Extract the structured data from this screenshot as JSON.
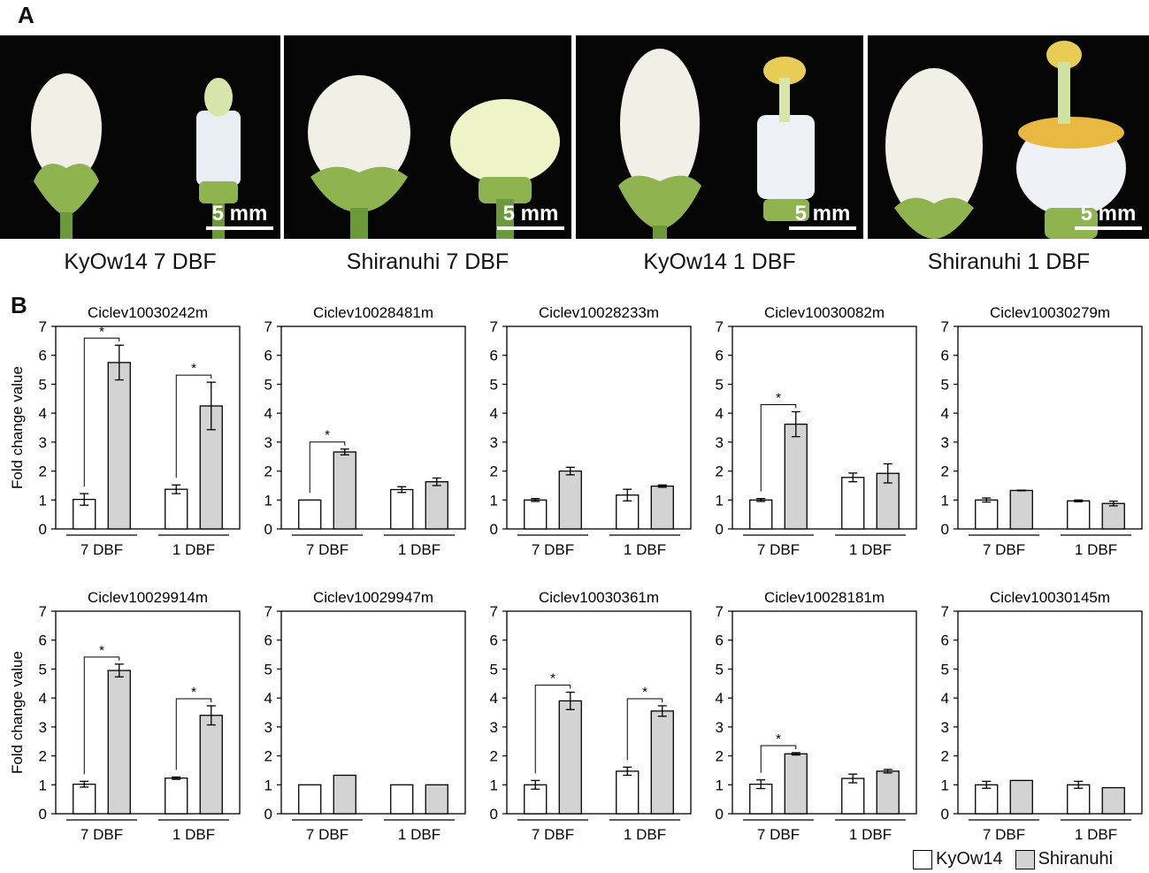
{
  "panels": {
    "a": "A",
    "b": "B"
  },
  "photos": [
    {
      "caption": "KyOw14 7 DBF",
      "scale": "5 mm"
    },
    {
      "caption": "Shiranuhi 7 DBF",
      "scale": "5 mm"
    },
    {
      "caption": "KyOw14 1 DBF",
      "scale": "5 mm"
    },
    {
      "caption": "Shiranuhi 1 DBF",
      "scale": "5 mm"
    }
  ],
  "legend": [
    {
      "label": "KyOw14",
      "color": "#ffffff"
    },
    {
      "label": "Shiranuhi",
      "color": "#d3d3d3"
    }
  ],
  "chart_data": [
    {
      "type": "bar",
      "title": "Ciclev10030242m",
      "ylabel": "Fold change value",
      "ylim": [
        0,
        7
      ],
      "categories": [
        "7 DBF",
        "1 DBF"
      ],
      "series": [
        {
          "name": "KyOw14",
          "values": [
            1.02,
            1.37
          ],
          "errors": [
            0.2,
            0.15
          ]
        },
        {
          "name": "Shiranuhi",
          "values": [
            5.75,
            4.25
          ],
          "errors": [
            0.6,
            0.82
          ]
        }
      ],
      "significant": [
        true,
        true
      ]
    },
    {
      "type": "bar",
      "title": "Ciclev10028481m",
      "ylabel": "",
      "ylim": [
        0,
        7
      ],
      "categories": [
        "7 DBF",
        "1 DBF"
      ],
      "series": [
        {
          "name": "KyOw14",
          "values": [
            1.0,
            1.36
          ],
          "errors": [
            0,
            0.1
          ]
        },
        {
          "name": "Shiranuhi",
          "values": [
            2.66,
            1.63
          ],
          "errors": [
            0.1,
            0.13
          ]
        }
      ],
      "significant": [
        true,
        false
      ]
    },
    {
      "type": "bar",
      "title": "Ciclev10028233m",
      "ylabel": "",
      "ylim": [
        0,
        7
      ],
      "categories": [
        "7 DBF",
        "1 DBF"
      ],
      "series": [
        {
          "name": "KyOw14",
          "values": [
            1.0,
            1.17
          ],
          "errors": [
            0.05,
            0.2
          ]
        },
        {
          "name": "Shiranuhi",
          "values": [
            2.0,
            1.48
          ],
          "errors": [
            0.13,
            0.04
          ]
        }
      ],
      "significant": [
        false,
        false
      ]
    },
    {
      "type": "bar",
      "title": "Ciclev10030082m",
      "ylabel": "",
      "ylim": [
        0,
        7
      ],
      "categories": [
        "7 DBF",
        "1 DBF"
      ],
      "series": [
        {
          "name": "KyOw14",
          "values": [
            1.0,
            1.78
          ],
          "errors": [
            0.05,
            0.15
          ]
        },
        {
          "name": "Shiranuhi",
          "values": [
            3.62,
            1.92
          ],
          "errors": [
            0.43,
            0.33
          ]
        }
      ],
      "significant": [
        true,
        false
      ]
    },
    {
      "type": "bar",
      "title": "Ciclev10030279m",
      "ylabel": "",
      "ylim": [
        0,
        7
      ],
      "categories": [
        "7 DBF",
        "1 DBF"
      ],
      "series": [
        {
          "name": "KyOw14",
          "values": [
            1.0,
            0.97
          ],
          "errors": [
            0.07,
            0.03
          ]
        },
        {
          "name": "Shiranuhi",
          "values": [
            1.33,
            0.88
          ],
          "errors": [
            0.01,
            0.08
          ]
        }
      ],
      "significant": [
        false,
        false
      ]
    },
    {
      "type": "bar",
      "title": "Ciclev10029914m",
      "ylabel": "Fold change value",
      "ylim": [
        0,
        7
      ],
      "categories": [
        "7 DBF",
        "1 DBF"
      ],
      "series": [
        {
          "name": "KyOw14",
          "values": [
            1.02,
            1.23
          ],
          "errors": [
            0.1,
            0.04
          ]
        },
        {
          "name": "Shiranuhi",
          "values": [
            4.95,
            3.4
          ],
          "errors": [
            0.22,
            0.33
          ]
        }
      ],
      "significant": [
        true,
        true
      ]
    },
    {
      "type": "bar",
      "title": "Ciclev10029947m",
      "ylabel": "",
      "ylim": [
        0,
        7
      ],
      "categories": [
        "7 DBF",
        "1 DBF"
      ],
      "series": [
        {
          "name": "KyOw14",
          "values": [
            1.0,
            1.0
          ],
          "errors": [
            0,
            0
          ]
        },
        {
          "name": "Shiranuhi",
          "values": [
            1.33,
            1.0
          ],
          "errors": [
            0,
            0
          ]
        }
      ],
      "significant": [
        false,
        false
      ]
    },
    {
      "type": "bar",
      "title": "Ciclev10030361m",
      "ylabel": "",
      "ylim": [
        0,
        7
      ],
      "categories": [
        "7 DBF",
        "1 DBF"
      ],
      "series": [
        {
          "name": "KyOw14",
          "values": [
            1.0,
            1.47
          ],
          "errors": [
            0.15,
            0.14
          ]
        },
        {
          "name": "Shiranuhi",
          "values": [
            3.9,
            3.55
          ],
          "errors": [
            0.3,
            0.18
          ]
        }
      ],
      "significant": [
        true,
        true
      ]
    },
    {
      "type": "bar",
      "title": "Ciclev10028181m",
      "ylabel": "",
      "ylim": [
        0,
        7
      ],
      "categories": [
        "7 DBF",
        "1 DBF"
      ],
      "series": [
        {
          "name": "KyOw14",
          "values": [
            1.02,
            1.22
          ],
          "errors": [
            0.15,
            0.15
          ]
        },
        {
          "name": "Shiranuhi",
          "values": [
            2.07,
            1.47
          ],
          "errors": [
            0.04,
            0.06
          ]
        }
      ],
      "significant": [
        true,
        false
      ]
    },
    {
      "type": "bar",
      "title": "Ciclev10030145m",
      "ylabel": "",
      "ylim": [
        0,
        7
      ],
      "categories": [
        "7 DBF",
        "1 DBF"
      ],
      "series": [
        {
          "name": "KyOw14",
          "values": [
            1.0,
            1.0
          ],
          "errors": [
            0.12,
            0.12
          ]
        },
        {
          "name": "Shiranuhi",
          "values": [
            1.15,
            0.9
          ],
          "errors": [
            0,
            0
          ]
        }
      ],
      "significant": [
        false,
        false
      ]
    }
  ]
}
